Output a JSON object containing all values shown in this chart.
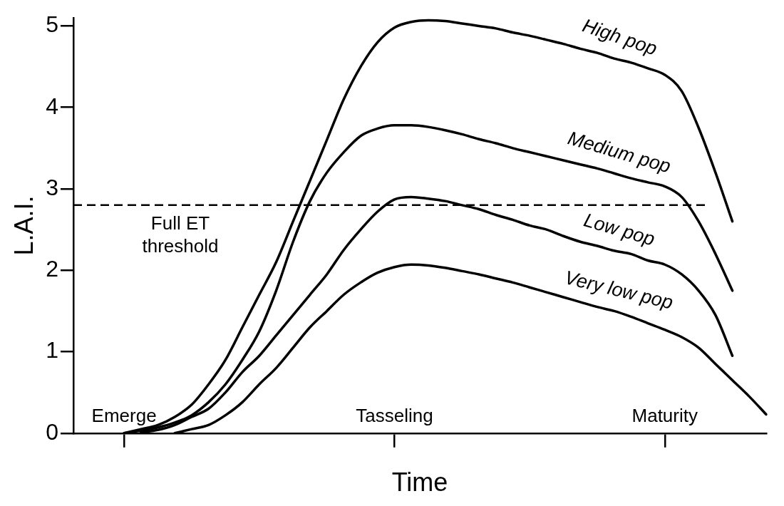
{
  "chart_data": {
    "type": "line",
    "xlabel": "Time",
    "ylabel": "L.A.I.",
    "categories": [
      null,
      null,
      null,
      "Emerge",
      null,
      null,
      null,
      null,
      null,
      null,
      null,
      null,
      null,
      null,
      null,
      null,
      null,
      null,
      null,
      "Tasseling",
      null,
      null,
      null,
      null,
      null,
      null,
      null,
      null,
      null,
      null,
      null,
      null,
      null,
      null,
      null,
      "Maturity",
      null,
      null,
      null,
      null,
      null,
      null
    ],
    "ylim": [
      0,
      5.1
    ],
    "yticks": [
      0,
      1,
      2,
      3,
      4,
      5
    ],
    "grid": false,
    "legend": false,
    "marker": "none",
    "line_style": "solid",
    "series": [
      {
        "name": "High pop",
        "color": "#000000",
        "values": [
          null,
          null,
          null,
          0,
          0.05,
          0.1,
          0.2,
          0.35,
          0.6,
          0.9,
          1.3,
          1.7,
          2.1,
          2.6,
          3.1,
          3.6,
          4.1,
          4.5,
          4.8,
          4.98,
          5.05,
          5.07,
          5.06,
          5.03,
          5.0,
          4.97,
          4.92,
          4.88,
          4.83,
          4.78,
          4.72,
          4.67,
          4.6,
          4.55,
          4.48,
          4.4,
          4.2,
          3.75,
          3.2,
          2.6,
          null,
          null
        ]
      },
      {
        "name": "Medium pop",
        "color": "#000000",
        "values": [
          null,
          null,
          null,
          0,
          0.03,
          0.07,
          0.13,
          0.22,
          0.38,
          0.6,
          0.9,
          1.25,
          1.75,
          2.35,
          2.85,
          3.2,
          3.45,
          3.65,
          3.74,
          3.78,
          3.78,
          3.76,
          3.72,
          3.67,
          3.61,
          3.56,
          3.5,
          3.45,
          3.4,
          3.35,
          3.3,
          3.25,
          3.19,
          3.13,
          3.08,
          3.03,
          2.9,
          2.6,
          2.2,
          1.75,
          null,
          null
        ]
      },
      {
        "name": "Low pop",
        "color": "#000000",
        "values": [
          null,
          null,
          null,
          null,
          0.01,
          0.04,
          0.1,
          0.2,
          0.3,
          0.5,
          0.75,
          0.95,
          1.2,
          1.45,
          1.7,
          1.95,
          2.25,
          2.5,
          2.72,
          2.87,
          2.9,
          2.88,
          2.85,
          2.8,
          2.75,
          2.68,
          2.62,
          2.55,
          2.5,
          2.42,
          2.35,
          2.3,
          2.24,
          2.2,
          2.12,
          2.07,
          1.95,
          1.75,
          1.45,
          0.95,
          null,
          null
        ]
      },
      {
        "name": "Very low pop",
        "color": "#000000",
        "values": [
          null,
          null,
          null,
          null,
          null,
          null,
          0,
          0.05,
          0.1,
          0.22,
          0.38,
          0.6,
          0.8,
          1.05,
          1.3,
          1.5,
          1.7,
          1.85,
          1.97,
          2.04,
          2.07,
          2.06,
          2.03,
          1.99,
          1.95,
          1.9,
          1.85,
          1.79,
          1.73,
          1.67,
          1.61,
          1.55,
          1.5,
          1.43,
          1.35,
          1.27,
          1.18,
          1.05,
          0.85,
          0.65,
          0.45,
          0.23
        ]
      }
    ],
    "ref_lines": [
      {
        "axis": "y",
        "value": 2.8,
        "label": "Full ET\nthreshold",
        "line_style": "dashed",
        "color": "#000000"
      }
    ]
  }
}
